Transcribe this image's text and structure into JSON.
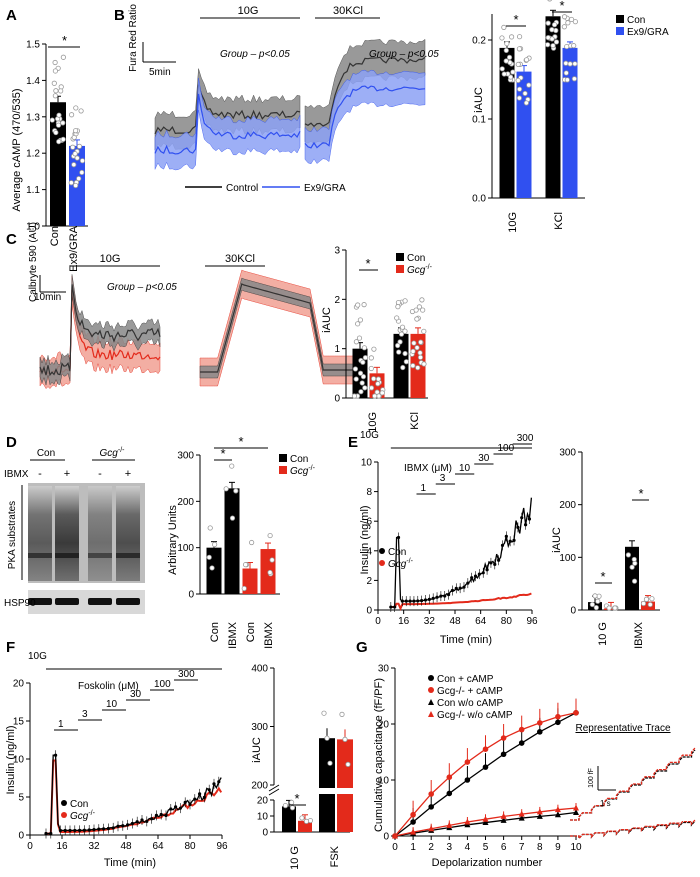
{
  "colors": {
    "con": "#000000",
    "ex9": "#3050f0",
    "gcg": "#e32a1b",
    "gcgFill": "#f2a093",
    "ex9Fill": "#8da2f5",
    "conFill": "#888888"
  },
  "chart_data": [
    {
      "id": "A",
      "type": "bar",
      "panel": "A",
      "ylabel": "Average cAMP (470/535)",
      "categories": [
        "Con",
        "Ex9/GRA"
      ],
      "values": [
        1.34,
        1.22
      ],
      "ylim": [
        1.0,
        1.5
      ],
      "yticks": [
        1.0,
        1.1,
        1.2,
        1.3,
        1.4,
        1.5
      ],
      "sig": "*"
    },
    {
      "id": "B1",
      "type": "line",
      "panel": "B",
      "ylabel": "Fura Red Ratio",
      "scalebar": "5min",
      "periods": [
        "10G",
        "30KCl"
      ],
      "annotations": [
        "Group – p<0.05",
        "Group – p<0.05"
      ],
      "series": [
        {
          "name": "Control"
        },
        {
          "name": "Ex9/GRA"
        }
      ]
    },
    {
      "id": "B2",
      "type": "bar",
      "ylabel": "iAUC",
      "categories": [
        "10G",
        "KCl"
      ],
      "series": [
        {
          "name": "Con",
          "values": [
            0.19,
            0.23
          ]
        },
        {
          "name": "Ex9/GRA",
          "values": [
            0.16,
            0.19
          ]
        }
      ],
      "ylim": [
        0,
        0.2
      ],
      "yticks": [
        0.0,
        0.1,
        0.2
      ],
      "sig": [
        "*",
        "*"
      ]
    },
    {
      "id": "C1",
      "type": "line",
      "panel": "C",
      "ylabel": "Calbryte 590 (AU)",
      "scalebar": "10min",
      "periods": [
        "10G",
        "30KCl"
      ],
      "annotations": [
        "Group – p<0.05"
      ]
    },
    {
      "id": "C2",
      "type": "bar",
      "ylabel": "iAUC",
      "categories": [
        "10G",
        "KCl"
      ],
      "series": [
        {
          "name": "Con",
          "values": [
            1.0,
            1.3
          ]
        },
        {
          "name": "Gcg",
          "values": [
            0.5,
            1.3
          ]
        }
      ],
      "ylim": [
        0,
        3
      ],
      "yticks": [
        0,
        1,
        2,
        3
      ],
      "sig": [
        "*"
      ]
    },
    {
      "id": "D2",
      "type": "bar",
      "panel": "D",
      "ylabel": "Arbitrary Units",
      "categories": [
        "Con",
        "IBMX",
        "Con",
        "IBMX"
      ],
      "values": [
        100,
        228,
        55,
        97
      ],
      "ylim": [
        0,
        300
      ],
      "yticks": [
        0,
        100,
        200,
        300
      ],
      "sig": [
        "*",
        "*"
      ]
    },
    {
      "id": "E1",
      "type": "line",
      "panel": "E",
      "xlabel": "Time (min)",
      "ylabel": "Insulin (ng/ml)",
      "xticks": [
        0,
        16,
        32,
        48,
        64,
        80,
        96
      ],
      "yticks": [
        0,
        2,
        4,
        6,
        8,
        10
      ],
      "xlim": [
        0,
        96
      ],
      "ylim": [
        0,
        10
      ],
      "period": "10G",
      "dose_title": "IBMX (μM)",
      "doses": [
        "1",
        "3",
        "10",
        "30",
        "100",
        "300"
      ],
      "series": [
        {
          "name": "Con"
        },
        {
          "name": "Gcg"
        }
      ]
    },
    {
      "id": "E2",
      "type": "bar",
      "ylabel": "iAUC",
      "categories": [
        "10 G",
        "IBMX"
      ],
      "series": [
        {
          "name": "Con",
          "values": [
            15,
            120
          ]
        },
        {
          "name": "Gcg",
          "values": [
            3,
            16
          ]
        }
      ],
      "ylim": [
        0,
        300
      ],
      "yticks": [
        0,
        100,
        200,
        300
      ],
      "sig": [
        "*",
        "*"
      ]
    },
    {
      "id": "F1",
      "type": "line",
      "panel": "F",
      "xlabel": "Time (min)",
      "ylabel": "Insulin (ng/ml)",
      "xticks": [
        0,
        16,
        32,
        48,
        64,
        80,
        96
      ],
      "yticks": [
        0,
        5,
        10,
        15,
        20
      ],
      "xlim": [
        0,
        96
      ],
      "ylim": [
        0,
        20
      ],
      "period": "10G",
      "dose_title": "Foskolin (μM)",
      "doses": [
        "1",
        "3",
        "10",
        "30",
        "100",
        "300"
      ],
      "series": [
        {
          "name": "Con"
        },
        {
          "name": "Gcg"
        }
      ]
    },
    {
      "id": "F2",
      "type": "bar",
      "ylabel": "iAUC",
      "categories": [
        "10 G",
        "FSK"
      ],
      "series": [
        {
          "name": "Con",
          "values": [
            16,
            280
          ]
        },
        {
          "name": "Gcg",
          "values": [
            7,
            278
          ]
        }
      ],
      "yticks_low": [
        0,
        10,
        20
      ],
      "yticks_high": [
        200,
        300,
        400
      ],
      "sig": [
        "*"
      ]
    },
    {
      "id": "G1",
      "type": "line",
      "panel": "G",
      "xlabel": "Depolarization number",
      "ylabel": "Cumulative capacitance (fF/PF)",
      "x": [
        0,
        1,
        2,
        3,
        4,
        5,
        6,
        7,
        8,
        9,
        10
      ],
      "xlim": [
        0,
        10
      ],
      "ylim": [
        0,
        30
      ],
      "yticks": [
        0,
        10,
        20,
        30
      ],
      "series": [
        {
          "name": "Con + cAMP",
          "values": [
            0,
            2.5,
            5.2,
            7.6,
            10,
            12.3,
            14.6,
            16.6,
            18.6,
            20.3,
            22
          ]
        },
        {
          "name": "Gcg-/- + cAMP",
          "values": [
            0,
            3.8,
            7.5,
            10.5,
            13.2,
            15.5,
            17.5,
            19,
            20.2,
            21.3,
            22
          ]
        },
        {
          "name": "Con w/o cAMP",
          "values": [
            0,
            0.5,
            1,
            1.5,
            2,
            2.4,
            2.8,
            3.2,
            3.5,
            3.8,
            4.2
          ]
        },
        {
          "name": "Gcg-/- w/o cAMP",
          "values": [
            0,
            0.7,
            1.3,
            1.9,
            2.5,
            3,
            3.5,
            3.9,
            4.3,
            4.7,
            5
          ]
        }
      ]
    },
    {
      "id": "G2",
      "type": "line",
      "title": "Representative Trace",
      "scale_y": "100 fF",
      "scale_x": "1 s"
    }
  ],
  "text": {
    "a_star": "*",
    "a_con": "Con",
    "a_ex9": "Ex9/GRA",
    "b_leg_ctrl": "Control",
    "b_leg_ex9": "Ex9/GRA",
    "b2_con": "Con",
    "b2_ex9": "Ex9/GRA",
    "c2_con": "Con",
    "c2_gcg": "Gcg",
    "sup": "-/-",
    "d_con": "Con",
    "d_gcg": "Gcg",
    "d_ibmx": "IBMX",
    "d_minus": "-",
    "d_plus": "+",
    "d_pka": "PKA substrates",
    "d_hsp": "HSP90",
    "e_con": "Con",
    "e_gcg": "Gcg",
    "f_con": "Con",
    "f_gcg": "Gcg"
  }
}
